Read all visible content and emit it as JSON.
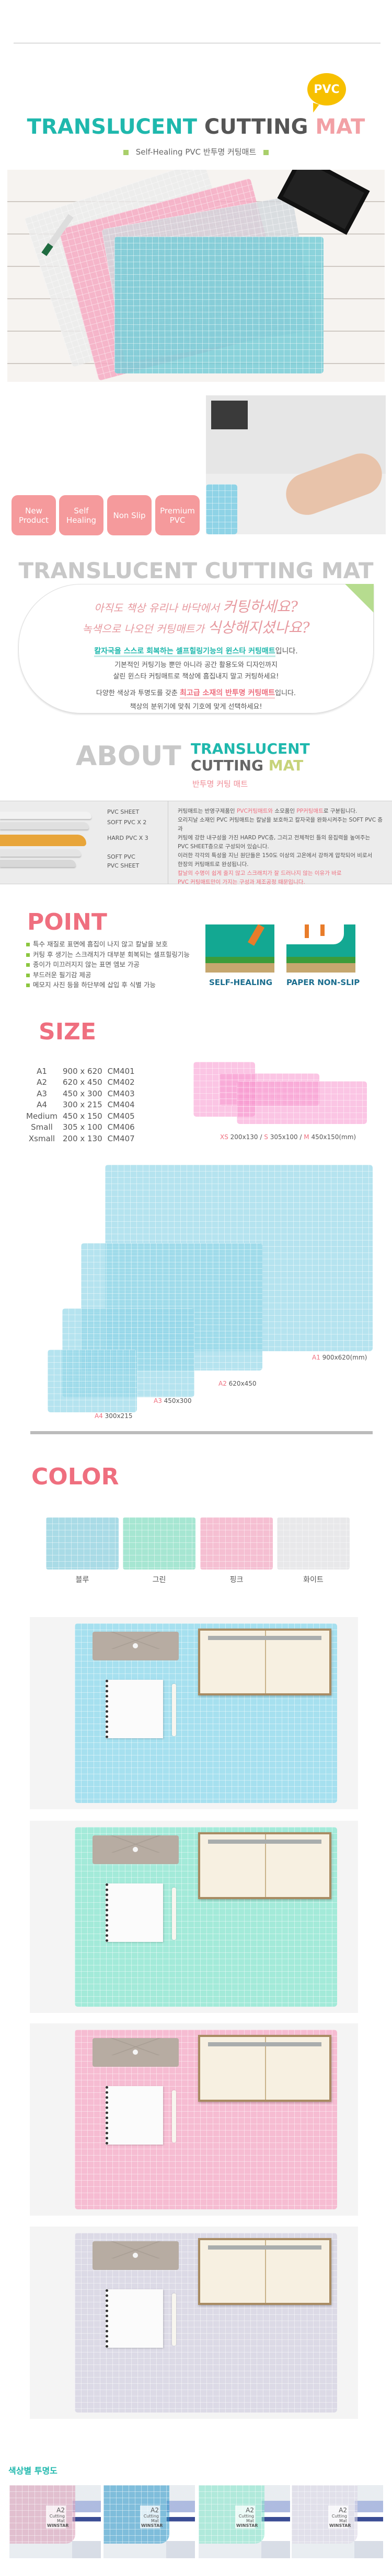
{
  "header": {
    "pvc_badge": "PVC",
    "title_part1": "TRANSLUCENT",
    "title_part2": "CUTTING",
    "title_part3": "MAT",
    "subtitle": "Self-Healing PVC 반투명 커팅매트"
  },
  "features": [
    "New Product",
    "Self Healing",
    "Non Slip",
    "Premium PVC"
  ],
  "intro": {
    "heading": "TRANSLUCENT CUTTING MAT",
    "hand_line1_a": "아직도 책상 유리나 바닥에서 ",
    "hand_line1_b": "커팅하세요?",
    "hand_line2_a": "녹색으로 나오던 커팅매트가 ",
    "hand_line2_b": "식상해지셨나요?",
    "p1_highlight": "칼자국을 스스로 회복하는 셀프힐링기능의 윈스타 커팅매트",
    "p1_tail": "입니다.",
    "p2": "기본적인 커팅기능 뿐만 아니라 공간 활용도와 디자인까지",
    "p3": "살린 윈스타 커팅매트로 책상에 흠집내지  말고 커팅하세요!",
    "p4_head": "다양한 색상과 투명도를 갖춘 ",
    "p4_highlight": "최고급 소재의 반투명 커팅매트",
    "p4_tail": "입니다.",
    "p5": "책상의 분위기에 맞춰 기호에 맞게 선택하세요!"
  },
  "about": {
    "about_word": "ABOUT",
    "line1": "TRANSLUCENT",
    "line2a": "CUTTING",
    "line2b": "MAT",
    "korean": "반투명 커팅 매트",
    "layers": [
      "PVC SHEET",
      "SOFT PVC X 2",
      "HARD PVC X 3",
      "SOFT PVC",
      "PVC SHEET"
    ],
    "text1_a": "커팅매트는 반영구제품인 ",
    "text1_b": "PVC커팅매트와",
    "text1_c": " 소모품인 ",
    "text1_d": "PP커팅매트",
    "text1_e": "로 구분됩니다.",
    "text2": "오리지날 소재인 PVC 커팅매트는 칼날을 보호하고 칼자국을 완화시켜주는 SOFT PVC 층과",
    "text3": "커팅에 강한 내구성을 가진 HARD PVC층, 그리고 전체적인 틀의 응집력을 높여주는",
    "text4": "PVC SHEET층으로 구성되어 있습니다.",
    "text5": "이러한 각각의 특성을 지닌 원단들은 150도 이상의 고온에서 강하게 압착되어 비로서",
    "text6": "한장의 커팅매트로 완성됩니다.",
    "text7": "칼날의 수명이 쉽게 줄지 않고 스크래치가 잘 드러나지 않는 이유가 바로",
    "text8": "PVC 커팅매트만이 가지는 구성과 제조공정 때문입니다."
  },
  "point": {
    "heading": "POINT",
    "bullets": [
      "특수 재질로 표면에 흠집이 나지 않고 칼날을 보호",
      "커팅 후 생기는 스크래치가 대부분 회복되는 셀프힐링기능",
      "종이가 미끄러지지 않는 표면 엠보 가공",
      "부드러운 필기감 제공",
      "메모지 사진 등을 하단부에 삽입 후 식별 가능"
    ],
    "icons": [
      "SELF-HEALING",
      "PAPER NON-SLIP"
    ]
  },
  "size": {
    "heading": "SIZE",
    "rows": [
      [
        "A1",
        "900 x 620",
        "CM401"
      ],
      [
        "A2",
        "620 x 450",
        "CM402"
      ],
      [
        "A3",
        "450 x 300",
        "CM403"
      ],
      [
        "A4",
        "300 x 215",
        "CM404"
      ],
      [
        "Medium",
        "450 x 150",
        "CM405"
      ],
      [
        "Small",
        "305 x 100",
        "CM406"
      ],
      [
        "Xsmall",
        "200 x 130",
        "CM407"
      ]
    ],
    "small_caption": {
      "xs": "XS",
      "xs_val": " 200x130 / ",
      "s": "S",
      "s_val": " 305x100 / ",
      "m": "M",
      "m_val": " 450x150(mm)"
    },
    "labels": {
      "a1": "A1",
      "a1_val": " 900x620(mm)",
      "a2": "A2",
      "a2_val": " 620x450",
      "a3": "A3",
      "a3_val": " 450x300",
      "a4": "A4",
      "a4_val": " 300x215"
    }
  },
  "color": {
    "heading": "COLOR",
    "swatches": [
      {
        "name": "블루",
        "hex": "#a9dbe6"
      },
      {
        "name": "그린",
        "hex": "#a6e6d2"
      },
      {
        "name": "핑크",
        "hex": "#f5bfd2"
      },
      {
        "name": "화이트",
        "hex": "#e8e8ea"
      }
    ],
    "photo_mats": [
      "#a6e0ef",
      "#a3ead9",
      "#f6bcd2",
      "#dcdae6"
    ]
  },
  "transparency": {
    "heading": "색상별 투명도",
    "card_label": "A2",
    "card_sub": "Cutting Mat",
    "card_brand": "WINSTAR",
    "tints": [
      "rgba(220,160,185,.6)",
      "rgba(40,150,200,.55)",
      "rgba(130,230,200,.55)",
      "rgba(220,215,230,.6)"
    ]
  },
  "colors": {
    "teal": "#1fb8ad",
    "pink": "#ef6f7f",
    "badge": "#f59a9c",
    "pvc_yellow": "#f7c000",
    "green": "#a9cf6a"
  }
}
